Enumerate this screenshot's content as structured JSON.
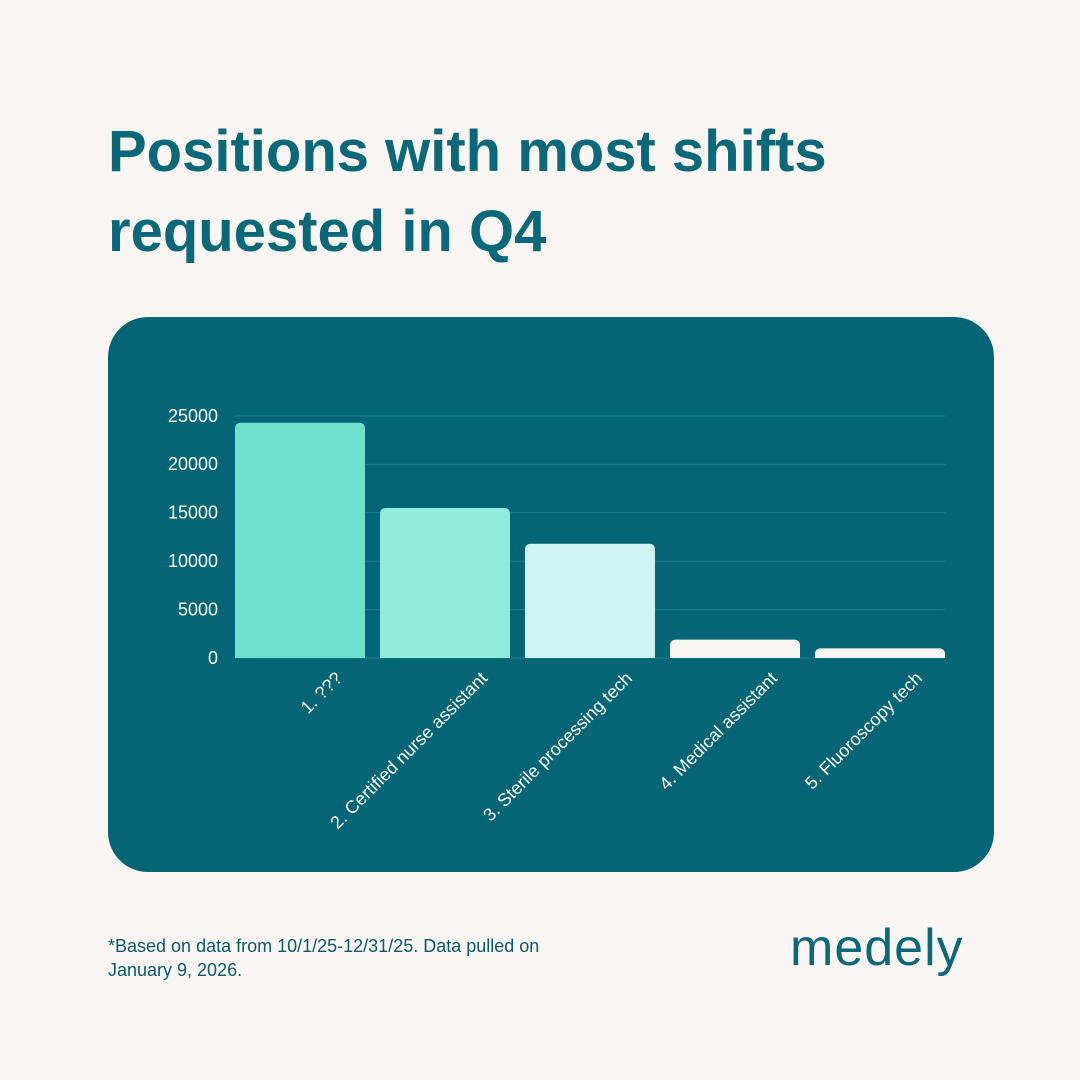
{
  "chart_data": {
    "type": "bar",
    "title": "Positions with most shifts requested in Q4",
    "categories": [
      "1. ???",
      "2. Certified nurse assistant",
      "3. Sterile processing tech",
      "4. Medical assistant",
      "5. Fluoroscopy tech"
    ],
    "values": [
      24300,
      15500,
      11800,
      1900,
      1000
    ],
    "colors": [
      "#6ddfca",
      "#90ebdb",
      "#cdf4ef",
      "#f8f5f2",
      "#f8f5f2"
    ],
    "ylim": [
      0,
      25000
    ],
    "yticks": [
      0,
      5000,
      10000,
      15000,
      20000,
      25000
    ],
    "grid": true
  },
  "footnote": [
    "*Based on data from 10/1/25-12/31/25. Data pulled on",
    "January 9, 2026."
  ],
  "logo": "medely"
}
